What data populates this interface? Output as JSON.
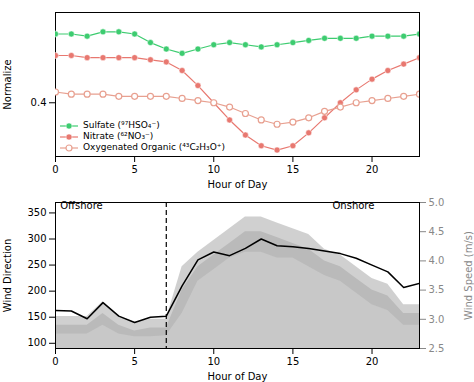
{
  "chart_data": [
    {
      "type": "line",
      "xlabel": "Hour of Day",
      "ylabel": "Normalize",
      "x": [
        0,
        1,
        2,
        3,
        4,
        5,
        6,
        7,
        8,
        9,
        10,
        11,
        12,
        13,
        14,
        15,
        16,
        17,
        18,
        19,
        20,
        21,
        22,
        23
      ],
      "xlim": [
        0,
        23
      ],
      "xticks": [
        0,
        5,
        10,
        15,
        20
      ],
      "ylim": [
        0.15,
        0.82
      ],
      "yticks": [
        0.4
      ],
      "grid": false,
      "legend": "lower left",
      "series": [
        {
          "name": "Sulfate (⁹⁷HSO₄⁻)",
          "color": "#3dcc70",
          "marker": "circle",
          "values": [
            0.72,
            0.72,
            0.71,
            0.73,
            0.73,
            0.72,
            0.68,
            0.65,
            0.63,
            0.65,
            0.67,
            0.68,
            0.67,
            0.66,
            0.67,
            0.68,
            0.69,
            0.7,
            0.7,
            0.7,
            0.71,
            0.71,
            0.71,
            0.72
          ]
        },
        {
          "name": "Nitrate (⁶²NO₃⁻)",
          "color": "#e87870",
          "marker": "circle",
          "values": [
            0.62,
            0.62,
            0.61,
            0.61,
            0.61,
            0.61,
            0.6,
            0.59,
            0.55,
            0.48,
            0.4,
            0.32,
            0.25,
            0.2,
            0.18,
            0.2,
            0.26,
            0.33,
            0.4,
            0.46,
            0.51,
            0.55,
            0.58,
            0.61
          ]
        },
        {
          "name": "Oxygenated Organic (⁴³C₂H₃O⁺)",
          "color": "#e8a090",
          "marker": "open_circle",
          "values": [
            0.45,
            0.44,
            0.44,
            0.44,
            0.43,
            0.43,
            0.43,
            0.43,
            0.42,
            0.41,
            0.4,
            0.38,
            0.35,
            0.32,
            0.3,
            0.31,
            0.33,
            0.36,
            0.38,
            0.4,
            0.41,
            0.42,
            0.43,
            0.44
          ]
        }
      ]
    },
    {
      "type": "line",
      "xlabel": "Hour of Day",
      "ylabel": "Wind Direction",
      "y2label": "Wind Speed (m/s)",
      "x": [
        0,
        1,
        2,
        3,
        4,
        5,
        6,
        7,
        8,
        9,
        10,
        11,
        12,
        13,
        14,
        15,
        16,
        17,
        18,
        19,
        20,
        21,
        22,
        23
      ],
      "xlim": [
        0,
        23
      ],
      "xticks": [
        0,
        5,
        10,
        15,
        20
      ],
      "ylim": [
        90,
        370
      ],
      "yticks": [
        100,
        150,
        200,
        250,
        300,
        350
      ],
      "y2lim": [
        2.5,
        5.0
      ],
      "y2ticks": [
        2.5,
        {
          "value": 3.0,
          "label": "3.0"
        },
        3.5,
        {
          "value": 4.0,
          "label": "4.0"
        },
        4.5,
        {
          "value": 5.0,
          "label": "5.0"
        }
      ],
      "grid": false,
      "series": [
        {
          "type": "area",
          "axis": "y2",
          "color": "#c8c8c8",
          "values": [
            2.9,
            2.9,
            2.9,
            3.1,
            2.9,
            2.8,
            2.85,
            2.85,
            3.5,
            3.9,
            4.1,
            4.3,
            4.5,
            4.5,
            4.4,
            4.3,
            4.2,
            4.0,
            3.9,
            3.7,
            3.5,
            3.4,
            3.1,
            3.1
          ]
        },
        {
          "type": "band",
          "axis": "y2",
          "color": "#b0b0b0",
          "lo": [
            2.75,
            2.75,
            2.75,
            2.9,
            2.75,
            2.7,
            2.7,
            2.72,
            3.1,
            3.65,
            3.85,
            4.05,
            4.15,
            4.15,
            4.05,
            4.05,
            3.9,
            3.75,
            3.65,
            3.45,
            3.25,
            3.15,
            2.9,
            2.9
          ],
          "hi": [
            3.05,
            3.05,
            3.05,
            3.3,
            3.05,
            2.95,
            3.0,
            3.0,
            3.9,
            4.15,
            4.35,
            4.55,
            4.75,
            4.75,
            4.65,
            4.55,
            4.45,
            4.2,
            4.1,
            3.9,
            3.7,
            3.6,
            3.25,
            3.25
          ]
        },
        {
          "type": "line",
          "color": "black",
          "values": [
            163,
            162,
            147,
            178,
            152,
            140,
            150,
            152,
            210,
            260,
            275,
            268,
            282,
            300,
            287,
            285,
            282,
            277,
            272,
            263,
            250,
            237,
            207,
            215
          ]
        }
      ],
      "vlines": [
        {
          "x": 7,
          "color": "black",
          "line_style": "dashed"
        }
      ],
      "annotations": [
        {
          "text": "Offshore",
          "x": 0.3,
          "y": 357
        },
        {
          "text": "Onshore",
          "x": 17.5,
          "y": 357
        }
      ]
    }
  ]
}
